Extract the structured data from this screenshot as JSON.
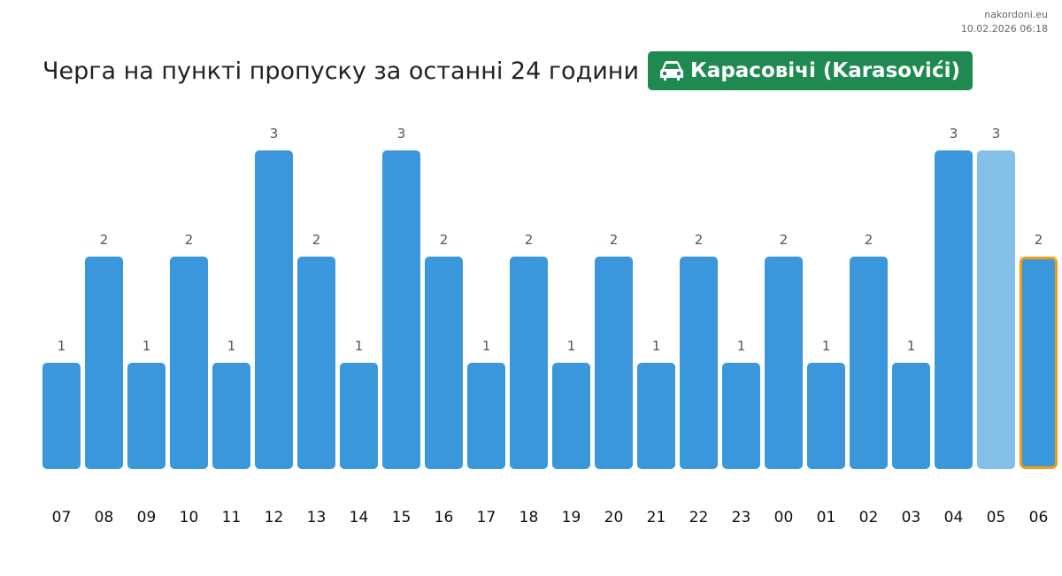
{
  "source": {
    "site": "nakordoni.eu",
    "timestamp": "10.02.2026 06:18"
  },
  "header": {
    "title": "Черга на пункті пропуску за останні 24 години",
    "checkpoint": "Карасовічі (Karasovići)",
    "icon": "car-icon"
  },
  "colors": {
    "bar": "#3a97db",
    "bar_light": "#85c0e8",
    "highlight_border": "#f39c12",
    "badge": "#1e8a4f"
  },
  "chart_data": {
    "type": "bar",
    "title": "Черга на пункті пропуску за останні 24 години",
    "xlabel": "",
    "ylabel": "",
    "ylim": [
      0,
      3
    ],
    "grid": false,
    "categories": [
      "07",
      "08",
      "09",
      "10",
      "11",
      "12",
      "13",
      "14",
      "15",
      "16",
      "17",
      "18",
      "19",
      "20",
      "21",
      "22",
      "23",
      "00",
      "01",
      "02",
      "03",
      "04",
      "05",
      "06"
    ],
    "values": [
      1,
      2,
      1,
      2,
      1,
      3,
      2,
      1,
      3,
      2,
      1,
      2,
      1,
      2,
      1,
      2,
      1,
      2,
      1,
      2,
      1,
      3,
      3,
      2
    ],
    "lighter_bar": "05",
    "highlighted_bar": "06"
  }
}
